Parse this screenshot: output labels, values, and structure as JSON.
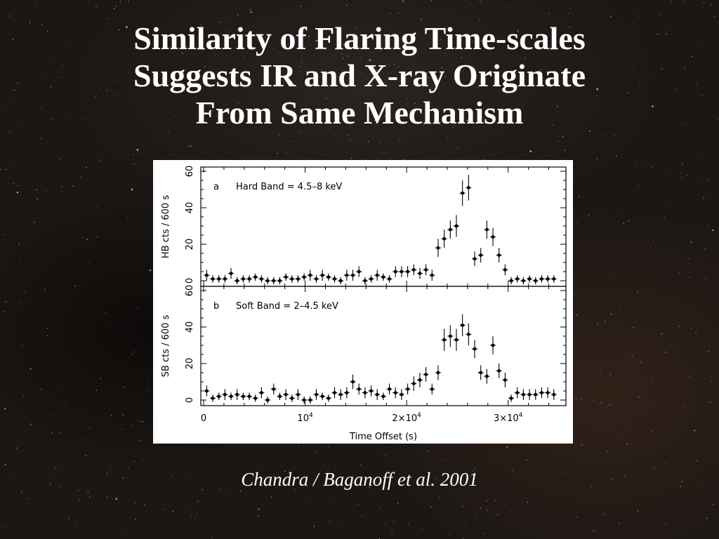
{
  "slide": {
    "title_lines": [
      "Similarity of Flaring Time-scales",
      "Suggests IR and X-ray Originate",
      "From Same Mechanism"
    ],
    "caption": "Chandra / Baganoff et al. 2001"
  },
  "colors": {
    "background": "#1c1714",
    "text": "#ffffff",
    "plot_ink": "#000000",
    "plot_bg": "#ffffff"
  },
  "chart_data": [
    {
      "type": "scatter",
      "panel_label": "a",
      "annotation": "Hard Band = 4.5–8 keV",
      "ylabel": "HB cts / 600 s",
      "xlabel": "",
      "ylim": [
        0,
        60
      ],
      "xlim": [
        0,
        35000
      ],
      "y_ticks": [
        "0",
        "20",
        "40",
        "60"
      ],
      "error_bars": true,
      "points": [
        {
          "x": 300,
          "y": 3,
          "err": 3
        },
        {
          "x": 900,
          "y": 1,
          "err": 2
        },
        {
          "x": 1500,
          "y": 1,
          "err": 2
        },
        {
          "x": 2100,
          "y": 1,
          "err": 2
        },
        {
          "x": 2700,
          "y": 4,
          "err": 3
        },
        {
          "x": 3300,
          "y": 0,
          "err": 2
        },
        {
          "x": 3900,
          "y": 1,
          "err": 2
        },
        {
          "x": 4500,
          "y": 1,
          "err": 2
        },
        {
          "x": 5100,
          "y": 2,
          "err": 2
        },
        {
          "x": 5700,
          "y": 1,
          "err": 2
        },
        {
          "x": 6300,
          "y": 0,
          "err": 2
        },
        {
          "x": 6900,
          "y": 0,
          "err": 2
        },
        {
          "x": 7500,
          "y": 0,
          "err": 2
        },
        {
          "x": 8100,
          "y": 2,
          "err": 2
        },
        {
          "x": 8700,
          "y": 1,
          "err": 2
        },
        {
          "x": 9300,
          "y": 1,
          "err": 2
        },
        {
          "x": 9900,
          "y": 2,
          "err": 2
        },
        {
          "x": 10500,
          "y": 3,
          "err": 3
        },
        {
          "x": 11100,
          "y": 1,
          "err": 2
        },
        {
          "x": 11700,
          "y": 3,
          "err": 3
        },
        {
          "x": 12300,
          "y": 2,
          "err": 2
        },
        {
          "x": 12900,
          "y": 1,
          "err": 2
        },
        {
          "x": 13500,
          "y": 0,
          "err": 2
        },
        {
          "x": 14100,
          "y": 3,
          "err": 3
        },
        {
          "x": 14700,
          "y": 3,
          "err": 3
        },
        {
          "x": 15300,
          "y": 5,
          "err": 3
        },
        {
          "x": 15900,
          "y": 0,
          "err": 2
        },
        {
          "x": 16500,
          "y": 1,
          "err": 2
        },
        {
          "x": 17100,
          "y": 3,
          "err": 3
        },
        {
          "x": 17700,
          "y": 2,
          "err": 2
        },
        {
          "x": 18300,
          "y": 1,
          "err": 2
        },
        {
          "x": 18900,
          "y": 5,
          "err": 3
        },
        {
          "x": 19500,
          "y": 5,
          "err": 3
        },
        {
          "x": 20100,
          "y": 5,
          "err": 3
        },
        {
          "x": 20700,
          "y": 6,
          "err": 3
        },
        {
          "x": 21300,
          "y": 4,
          "err": 3
        },
        {
          "x": 21900,
          "y": 6,
          "err": 3
        },
        {
          "x": 22500,
          "y": 3,
          "err": 3
        },
        {
          "x": 23100,
          "y": 18,
          "err": 5
        },
        {
          "x": 23700,
          "y": 23,
          "err": 5
        },
        {
          "x": 24300,
          "y": 28,
          "err": 5
        },
        {
          "x": 24900,
          "y": 30,
          "err": 6
        },
        {
          "x": 25500,
          "y": 48,
          "err": 7
        },
        {
          "x": 26100,
          "y": 51,
          "err": 7
        },
        {
          "x": 26700,
          "y": 12,
          "err": 4
        },
        {
          "x": 27300,
          "y": 14,
          "err": 4
        },
        {
          "x": 27900,
          "y": 28,
          "err": 5
        },
        {
          "x": 28500,
          "y": 24,
          "err": 5
        },
        {
          "x": 29100,
          "y": 14,
          "err": 4
        },
        {
          "x": 29700,
          "y": 6,
          "err": 3
        },
        {
          "x": 30300,
          "y": 0,
          "err": 2
        },
        {
          "x": 30900,
          "y": 1,
          "err": 2
        },
        {
          "x": 31500,
          "y": 0,
          "err": 2
        },
        {
          "x": 32100,
          "y": 1,
          "err": 2
        },
        {
          "x": 32700,
          "y": 0,
          "err": 2
        },
        {
          "x": 33300,
          "y": 1,
          "err": 2
        },
        {
          "x": 33900,
          "y": 1,
          "err": 2
        },
        {
          "x": 34500,
          "y": 1,
          "err": 2
        }
      ]
    },
    {
      "type": "scatter",
      "panel_label": "b",
      "annotation": "Soft Band = 2–4.5 keV",
      "ylabel": "SB cts / 600 s",
      "xlabel": "Time Offset (s)",
      "ylim": [
        0,
        60
      ],
      "xlim": [
        0,
        35000
      ],
      "y_ticks": [
        "0",
        "20",
        "40",
        "60"
      ],
      "x_ticks": [
        {
          "value": 0,
          "label": "0"
        },
        {
          "value": 10000,
          "label": "10",
          "exp": "4"
        },
        {
          "value": 20000,
          "label": "2×10",
          "exp": "4"
        },
        {
          "value": 30000,
          "label": "3×10",
          "exp": "4"
        }
      ],
      "error_bars": true,
      "points": [
        {
          "x": 300,
          "y": 5,
          "err": 3
        },
        {
          "x": 900,
          "y": 1,
          "err": 2
        },
        {
          "x": 1500,
          "y": 2,
          "err": 2
        },
        {
          "x": 2100,
          "y": 3,
          "err": 3
        },
        {
          "x": 2700,
          "y": 2,
          "err": 2
        },
        {
          "x": 3300,
          "y": 3,
          "err": 3
        },
        {
          "x": 3900,
          "y": 2,
          "err": 2
        },
        {
          "x": 4500,
          "y": 2,
          "err": 2
        },
        {
          "x": 5100,
          "y": 1,
          "err": 2
        },
        {
          "x": 5700,
          "y": 4,
          "err": 3
        },
        {
          "x": 6300,
          "y": 0,
          "err": 2
        },
        {
          "x": 6900,
          "y": 6,
          "err": 3
        },
        {
          "x": 7500,
          "y": 2,
          "err": 2
        },
        {
          "x": 8100,
          "y": 3,
          "err": 3
        },
        {
          "x": 8700,
          "y": 1,
          "err": 2
        },
        {
          "x": 9300,
          "y": 3,
          "err": 3
        },
        {
          "x": 9900,
          "y": 0,
          "err": 2
        },
        {
          "x": 10500,
          "y": 0,
          "err": 2
        },
        {
          "x": 11100,
          "y": 3,
          "err": 3
        },
        {
          "x": 11700,
          "y": 2,
          "err": 2
        },
        {
          "x": 12300,
          "y": 1,
          "err": 2
        },
        {
          "x": 12900,
          "y": 4,
          "err": 3
        },
        {
          "x": 13500,
          "y": 3,
          "err": 3
        },
        {
          "x": 14100,
          "y": 4,
          "err": 3
        },
        {
          "x": 14700,
          "y": 10,
          "err": 4
        },
        {
          "x": 15300,
          "y": 6,
          "err": 3
        },
        {
          "x": 15900,
          "y": 4,
          "err": 3
        },
        {
          "x": 16500,
          "y": 5,
          "err": 3
        },
        {
          "x": 17100,
          "y": 3,
          "err": 3
        },
        {
          "x": 17700,
          "y": 2,
          "err": 2
        },
        {
          "x": 18300,
          "y": 6,
          "err": 3
        },
        {
          "x": 18900,
          "y": 4,
          "err": 3
        },
        {
          "x": 19500,
          "y": 3,
          "err": 3
        },
        {
          "x": 20100,
          "y": 6,
          "err": 3
        },
        {
          "x": 20700,
          "y": 9,
          "err": 4
        },
        {
          "x": 21300,
          "y": 11,
          "err": 4
        },
        {
          "x": 21900,
          "y": 14,
          "err": 4
        },
        {
          "x": 22500,
          "y": 6,
          "err": 3
        },
        {
          "x": 23100,
          "y": 15,
          "err": 4
        },
        {
          "x": 23700,
          "y": 33,
          "err": 6
        },
        {
          "x": 24300,
          "y": 35,
          "err": 6
        },
        {
          "x": 24900,
          "y": 33,
          "err": 6
        },
        {
          "x": 25500,
          "y": 41,
          "err": 6
        },
        {
          "x": 26100,
          "y": 36,
          "err": 6
        },
        {
          "x": 26700,
          "y": 28,
          "err": 5
        },
        {
          "x": 27300,
          "y": 15,
          "err": 4
        },
        {
          "x": 27900,
          "y": 13,
          "err": 4
        },
        {
          "x": 28500,
          "y": 30,
          "err": 5
        },
        {
          "x": 29100,
          "y": 16,
          "err": 4
        },
        {
          "x": 29700,
          "y": 11,
          "err": 4
        },
        {
          "x": 30300,
          "y": 1,
          "err": 2
        },
        {
          "x": 30900,
          "y": 4,
          "err": 3
        },
        {
          "x": 31500,
          "y": 3,
          "err": 3
        },
        {
          "x": 32100,
          "y": 3,
          "err": 3
        },
        {
          "x": 32700,
          "y": 3,
          "err": 3
        },
        {
          "x": 33300,
          "y": 4,
          "err": 3
        },
        {
          "x": 33900,
          "y": 4,
          "err": 3
        },
        {
          "x": 34500,
          "y": 3,
          "err": 3
        }
      ]
    }
  ]
}
